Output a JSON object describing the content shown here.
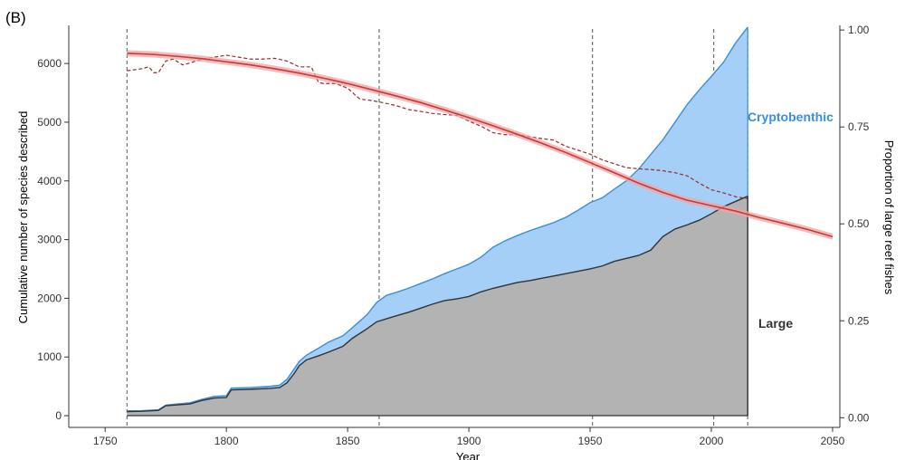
{
  "panel_label": "(B)",
  "chart_data": {
    "type": "area",
    "xlabel": "Year",
    "ylabel": "Cumulative number of species described",
    "y2label": "Proportion of large reef fishes",
    "xlim": [
      1735,
      2053
    ],
    "ylim": [
      -200,
      6650
    ],
    "y2lim": [
      -0.025,
      1.012
    ],
    "xticks": [
      1750,
      1800,
      1850,
      1900,
      1950,
      2000,
      2050
    ],
    "yticks": [
      0,
      1000,
      2000,
      3000,
      4000,
      5000,
      6000
    ],
    "y2ticks": [
      0.0,
      0.25,
      0.5,
      0.75,
      1.0
    ],
    "y2tick_labels": [
      "0.00",
      "0.25",
      "0.50",
      "0.75",
      "1.00"
    ],
    "vlines": [
      1759,
      1863,
      1951,
      2001,
      2015
    ],
    "grid": false,
    "series": [
      {
        "name": "Cryptobenthic",
        "label_color": "#3a8fdc",
        "fill": "#a6cff7",
        "stroke": "#3a8fdc",
        "x": [
          1759,
          1765,
          1772,
          1775,
          1780,
          1785,
          1790,
          1795,
          1800,
          1802,
          1810,
          1818,
          1822,
          1825,
          1828,
          1830,
          1833,
          1838,
          1842,
          1848,
          1852,
          1858,
          1862,
          1866,
          1870,
          1875,
          1880,
          1885,
          1890,
          1895,
          1900,
          1905,
          1910,
          1915,
          1920,
          1925,
          1930,
          1935,
          1940,
          1945,
          1950,
          1955,
          1960,
          1965,
          1970,
          1975,
          1980,
          1985,
          1990,
          1995,
          2000,
          2005,
          2010,
          2015
        ],
        "values": [
          80,
          85,
          100,
          180,
          200,
          220,
          280,
          330,
          340,
          470,
          480,
          500,
          520,
          620,
          800,
          920,
          1030,
          1150,
          1250,
          1360,
          1500,
          1720,
          1930,
          2050,
          2100,
          2170,
          2250,
          2330,
          2420,
          2500,
          2580,
          2700,
          2870,
          2980,
          3070,
          3150,
          3220,
          3290,
          3380,
          3500,
          3630,
          3710,
          3860,
          4000,
          4200,
          4450,
          4700,
          5000,
          5300,
          5550,
          5780,
          6020,
          6350,
          6620
        ]
      },
      {
        "name": "Large",
        "label_color": "#333333",
        "fill": "#b3b3b3",
        "stroke": "#333333",
        "x": [
          1759,
          1765,
          1772,
          1775,
          1780,
          1785,
          1790,
          1795,
          1800,
          1802,
          1810,
          1818,
          1822,
          1825,
          1828,
          1830,
          1833,
          1838,
          1842,
          1848,
          1852,
          1858,
          1862,
          1866,
          1870,
          1875,
          1880,
          1885,
          1890,
          1895,
          1900,
          1905,
          1910,
          1915,
          1920,
          1925,
          1930,
          1935,
          1940,
          1945,
          1950,
          1955,
          1960,
          1965,
          1970,
          1975,
          1980,
          1985,
          1990,
          1995,
          2000,
          2005,
          2010,
          2015
        ],
        "values": [
          70,
          75,
          90,
          170,
          185,
          200,
          260,
          300,
          310,
          440,
          450,
          465,
          480,
          560,
          720,
          850,
          950,
          1020,
          1080,
          1180,
          1320,
          1480,
          1600,
          1650,
          1700,
          1760,
          1830,
          1900,
          1960,
          1990,
          2030,
          2110,
          2170,
          2220,
          2270,
          2300,
          2340,
          2380,
          2420,
          2460,
          2500,
          2550,
          2630,
          2680,
          2730,
          2820,
          3050,
          3180,
          3250,
          3330,
          3440,
          3560,
          3650,
          3740
        ]
      }
    ],
    "secondary_series": [
      {
        "kind": "observed-dashed",
        "color": "#9a2a2a",
        "x": [
          1759,
          1765,
          1768,
          1770,
          1772,
          1775,
          1778,
          1782,
          1785,
          1790,
          1795,
          1800,
          1805,
          1810,
          1815,
          1820,
          1825,
          1830,
          1835,
          1838,
          1840,
          1845,
          1850,
          1855,
          1860,
          1865,
          1870,
          1875,
          1880,
          1885,
          1890,
          1895,
          1900,
          1905,
          1910,
          1915,
          1920,
          1925,
          1930,
          1935,
          1940,
          1945,
          1950,
          1955,
          1960,
          1965,
          1970,
          1975,
          1980,
          1985,
          1990,
          1995,
          2000,
          2005,
          2010,
          2015
        ],
        "values": [
          0.895,
          0.9,
          0.905,
          0.89,
          0.89,
          0.92,
          0.925,
          0.91,
          0.915,
          0.925,
          0.93,
          0.935,
          0.93,
          0.925,
          0.925,
          0.927,
          0.92,
          0.905,
          0.905,
          0.865,
          0.862,
          0.862,
          0.85,
          0.822,
          0.818,
          0.812,
          0.805,
          0.795,
          0.79,
          0.785,
          0.782,
          0.78,
          0.765,
          0.752,
          0.735,
          0.73,
          0.73,
          0.725,
          0.72,
          0.716,
          0.7,
          0.69,
          0.68,
          0.665,
          0.655,
          0.645,
          0.642,
          0.64,
          0.637,
          0.632,
          0.624,
          0.605,
          0.588,
          0.58,
          0.57,
          0.565
        ]
      },
      {
        "kind": "fitted",
        "color": "#c73a3a",
        "band_color": "#f2a3a3",
        "band_halfwidth": 0.008,
        "x": [
          1759,
          1770,
          1780,
          1790,
          1800,
          1810,
          1820,
          1830,
          1840,
          1850,
          1860,
          1870,
          1880,
          1890,
          1900,
          1910,
          1920,
          1930,
          1940,
          1950,
          1960,
          1970,
          1980,
          1990,
          2000,
          2010,
          2020,
          2030,
          2040,
          2050
        ],
        "values": [
          0.94,
          0.937,
          0.932,
          0.926,
          0.918,
          0.91,
          0.9,
          0.889,
          0.876,
          0.862,
          0.846,
          0.83,
          0.813,
          0.794,
          0.774,
          0.753,
          0.731,
          0.708,
          0.684,
          0.658,
          0.632,
          0.605,
          0.581,
          0.561,
          0.547,
          0.533,
          0.516,
          0.501,
          0.485,
          0.467
        ]
      }
    ]
  }
}
